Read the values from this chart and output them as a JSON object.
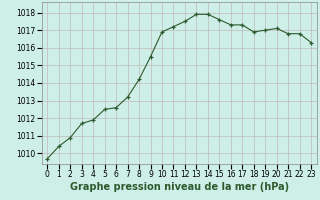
{
  "x": [
    0,
    1,
    2,
    3,
    4,
    5,
    6,
    7,
    8,
    9,
    10,
    11,
    12,
    13,
    14,
    15,
    16,
    17,
    18,
    19,
    20,
    21,
    22,
    23
  ],
  "y": [
    1009.7,
    1010.4,
    1010.9,
    1011.7,
    1011.9,
    1012.5,
    1012.6,
    1013.2,
    1014.2,
    1015.5,
    1016.9,
    1017.2,
    1017.5,
    1017.9,
    1017.9,
    1017.6,
    1017.3,
    1017.3,
    1016.9,
    1017.0,
    1017.1,
    1016.8,
    1016.8,
    1016.3
  ],
  "line_color": "#2d5a2d",
  "marker": "+",
  "marker_size": 3,
  "background_color": "#ceeee8",
  "grid_color": "#c0b8b8",
  "xlabel": "Graphe pression niveau de la mer (hPa)",
  "xlabel_fontsize": 7,
  "ylabel_ticks": [
    1010,
    1011,
    1012,
    1013,
    1014,
    1015,
    1016,
    1017,
    1018
  ],
  "ylim": [
    1009.4,
    1018.6
  ],
  "xlim": [
    -0.5,
    23.5
  ],
  "xtick_labels": [
    "0",
    "1",
    "2",
    "3",
    "4",
    "5",
    "6",
    "7",
    "8",
    "9",
    "10",
    "11",
    "12",
    "13",
    "14",
    "15",
    "16",
    "17",
    "18",
    "19",
    "20",
    "21",
    "22",
    "23"
  ],
  "tick_fontsize": 5.5,
  "ylabel_fontsize": 5.5,
  "spine_color": "#888888"
}
